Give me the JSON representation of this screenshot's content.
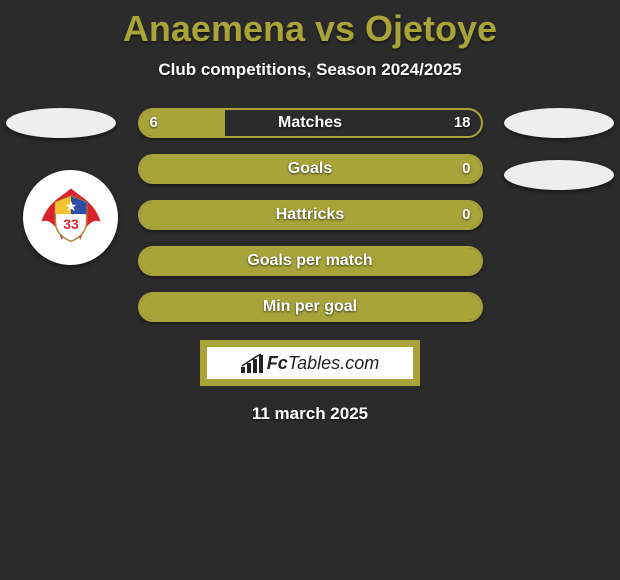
{
  "title": "Anaemena vs Ojetoye",
  "subtitle": "Club competitions, Season 2024/2025",
  "footer_date": "11 march 2025",
  "logo": {
    "brand_a": "Fc",
    "brand_b": "Tables",
    "brand_c": ".com"
  },
  "colors": {
    "accent": "#a8a43a",
    "background": "#2b2b2b",
    "text": "#ffffff",
    "badge_bg": "#eeeeee",
    "club_bg": "#ffffff"
  },
  "club_crest": {
    "wing_color": "#d8232a",
    "shield_stroke": "#b0893a",
    "shield_blue": "#2e4fa3",
    "shield_yellow": "#f4c430",
    "shield_white": "#ffffff",
    "number": "33",
    "number_color": "#d8232a"
  },
  "bars": [
    {
      "label": "Matches",
      "left": "6",
      "right": "18",
      "fill_pct": 25
    },
    {
      "label": "Goals",
      "left": "",
      "right": "0",
      "fill_pct": 100
    },
    {
      "label": "Hattricks",
      "left": "",
      "right": "0",
      "fill_pct": 100
    },
    {
      "label": "Goals per match",
      "left": "",
      "right": "",
      "fill_pct": 100
    },
    {
      "label": "Min per goal",
      "left": "",
      "right": "",
      "fill_pct": 100
    }
  ]
}
